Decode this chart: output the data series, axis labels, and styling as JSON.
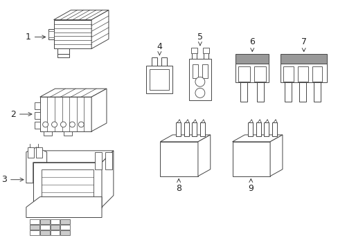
{
  "bg_color": "#ffffff",
  "line_color": "#444444",
  "gray_color": "#999999",
  "label_color": "#222222",
  "figsize": [
    4.89,
    3.6
  ],
  "dpi": 100,
  "lw": 0.7
}
